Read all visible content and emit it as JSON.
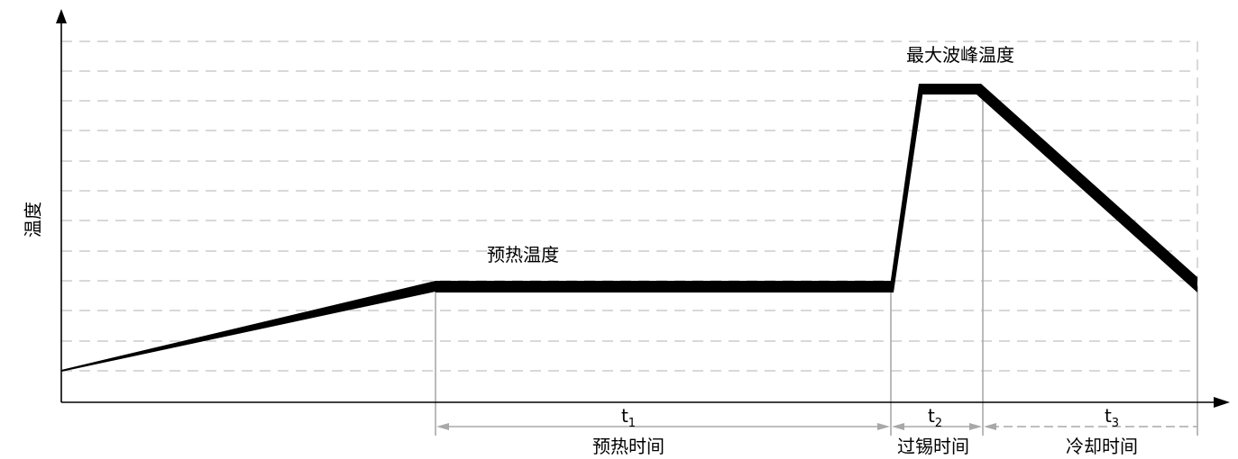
{
  "y_axis_label": "温度",
  "curve_labels": {
    "preheat_temperature": "预热温度",
    "max_wave_peak_temperature": "最大波峰温度"
  },
  "time_intervals": [
    {
      "symbol": "t",
      "subscript": "1",
      "label": "预热时间"
    },
    {
      "symbol": "t",
      "subscript": "2",
      "label": "过锡时间"
    },
    {
      "symbol": "t",
      "subscript": "3",
      "label": "冷却时间"
    }
  ],
  "colors": {
    "curve": "#000000",
    "axis": "#000000",
    "grid": "#c0c0c0",
    "guide": "#a8a8a8"
  },
  "grid": true
}
